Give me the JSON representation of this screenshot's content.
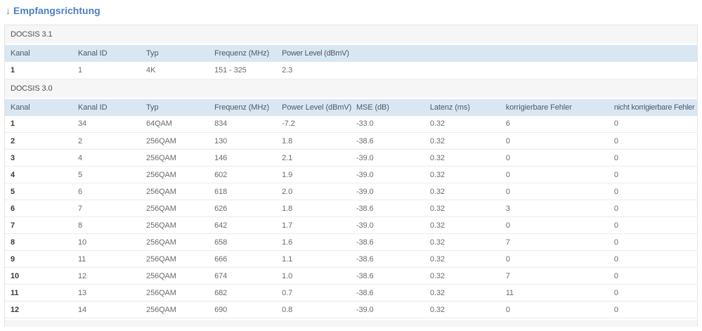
{
  "page": {
    "title_arrow": "↓",
    "title": "Empfangsrichtung"
  },
  "docsis31": {
    "section_label": "DOCSIS 3.1",
    "columns": [
      "Kanal",
      "Kanal ID",
      "Typ",
      "Frequenz (MHz)",
      "Power Level (dBmV)"
    ],
    "rows": [
      [
        "1",
        "1",
        "4K",
        "151 - 325",
        "2.3"
      ]
    ]
  },
  "docsis30": {
    "section_label": "DOCSIS 3.0",
    "columns": [
      "Kanal",
      "Kanal ID",
      "Typ",
      "Frequenz (MHz)",
      "Power Level (dBmV)",
      "MSE (dB)",
      "Latenz (ms)",
      "korrigierbare Fehler",
      "nicht korrigierbare Fehler"
    ],
    "rows": [
      [
        "1",
        "34",
        "64QAM",
        "834",
        "-7.2",
        "-33.0",
        "0.32",
        "6",
        "0"
      ],
      [
        "2",
        "2",
        "256QAM",
        "130",
        "1.8",
        "-38.6",
        "0.32",
        "0",
        "0"
      ],
      [
        "3",
        "4",
        "256QAM",
        "146",
        "2.1",
        "-39.0",
        "0.32",
        "0",
        "0"
      ],
      [
        "4",
        "5",
        "256QAM",
        "602",
        "1.9",
        "-39.0",
        "0.32",
        "0",
        "0"
      ],
      [
        "5",
        "6",
        "256QAM",
        "618",
        "2.0",
        "-39.0",
        "0.32",
        "0",
        "0"
      ],
      [
        "6",
        "7",
        "256QAM",
        "626",
        "1.8",
        "-38.6",
        "0.32",
        "3",
        "0"
      ],
      [
        "7",
        "8",
        "256QAM",
        "642",
        "1.7",
        "-39.0",
        "0.32",
        "0",
        "0"
      ],
      [
        "8",
        "10",
        "256QAM",
        "658",
        "1.6",
        "-38.6",
        "0.32",
        "7",
        "0"
      ],
      [
        "9",
        "11",
        "256QAM",
        "666",
        "1.1",
        "-38.6",
        "0.32",
        "0",
        "0"
      ],
      [
        "10",
        "12",
        "256QAM",
        "674",
        "1.0",
        "-38.6",
        "0.32",
        "7",
        "0"
      ],
      [
        "11",
        "13",
        "256QAM",
        "682",
        "0.7",
        "-38.6",
        "0.32",
        "11",
        "0"
      ],
      [
        "12",
        "14",
        "256QAM",
        "690",
        "0.8",
        "-39.0",
        "0.32",
        "0",
        "0"
      ]
    ]
  },
  "colors": {
    "accent_blue": "#4d7fbd",
    "table_header_bg": "#d9e7f3",
    "section_header_bg": "#f7f6f6",
    "row_border": "#ececec",
    "cell_text": "#6b6b6b"
  }
}
